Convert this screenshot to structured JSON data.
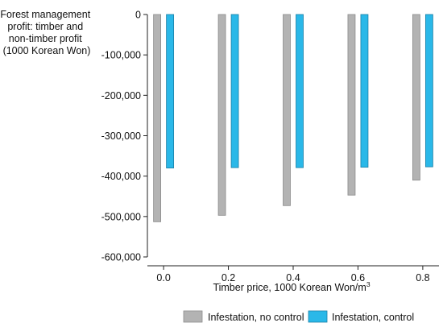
{
  "chart_data": {
    "type": "bar",
    "ylabel_lines": [
      "Forest management",
      "profit: timber and",
      "non-timber profit",
      "(1000 Korean Won)"
    ],
    "xlabel": "Timber price, 1000 Korean Won/m",
    "xlabel_sup": "3",
    "categories": [
      "0.0",
      "0.2",
      "0.4",
      "0.6",
      "0.8"
    ],
    "x": [
      0.0,
      0.2,
      0.4,
      0.6,
      0.8
    ],
    "xlim": [
      -0.05,
      0.85
    ],
    "ylim": [
      -600000,
      0
    ],
    "yticks": [
      0,
      -100000,
      -200000,
      -300000,
      -400000,
      -500000,
      -600000
    ],
    "ytick_labels": [
      "0",
      "-100,000",
      "-200,000",
      "-300,000",
      "-400,000",
      "-500,000",
      "-600,000"
    ],
    "grid": false,
    "legend_position": "bottom",
    "series": [
      {
        "name": "Infestation, no control",
        "color": "#b3b3b3",
        "stroke": "#8c8c8c",
        "values": [
          -513000,
          -497000,
          -473000,
          -447000,
          -410000
        ]
      },
      {
        "name": "Infestation, control",
        "color": "#2ab8e8",
        "stroke": "#1a7fa6",
        "values": [
          -380000,
          -379000,
          -379000,
          -378000,
          -377000
        ]
      }
    ]
  }
}
